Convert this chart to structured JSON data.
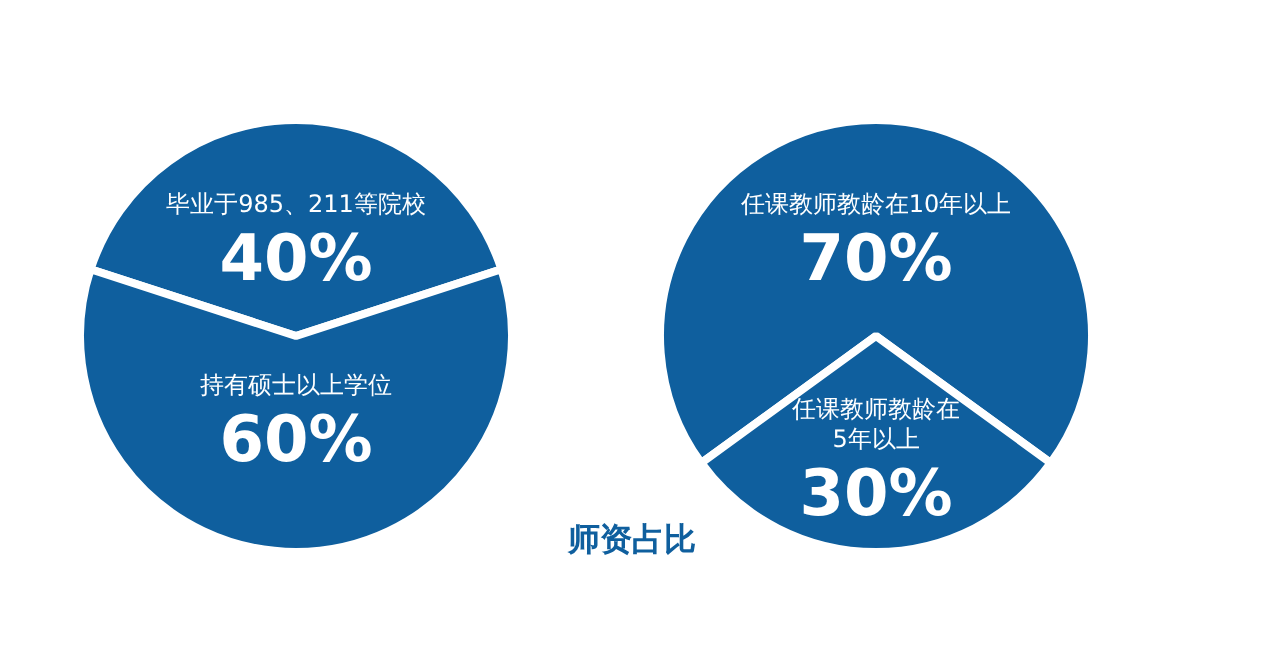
{
  "chart_data": [
    {
      "type": "pie",
      "title": "师资占比",
      "categories": [
        "毕业于985、211等院校",
        "持有硕士以上学位"
      ],
      "values": [
        40,
        60
      ],
      "colors": [
        "#0f5f9e",
        "#0f5f9e"
      ],
      "value_labels": [
        "40%",
        "60%"
      ]
    },
    {
      "type": "pie",
      "categories": [
        "任课教师教龄在10年以上",
        "任课教师教龄在5年以上"
      ],
      "values": [
        70,
        30
      ],
      "colors": [
        "#0f5f9e",
        "#0f5f9e"
      ],
      "value_labels": [
        "70%",
        "30%"
      ]
    }
  ]
}
